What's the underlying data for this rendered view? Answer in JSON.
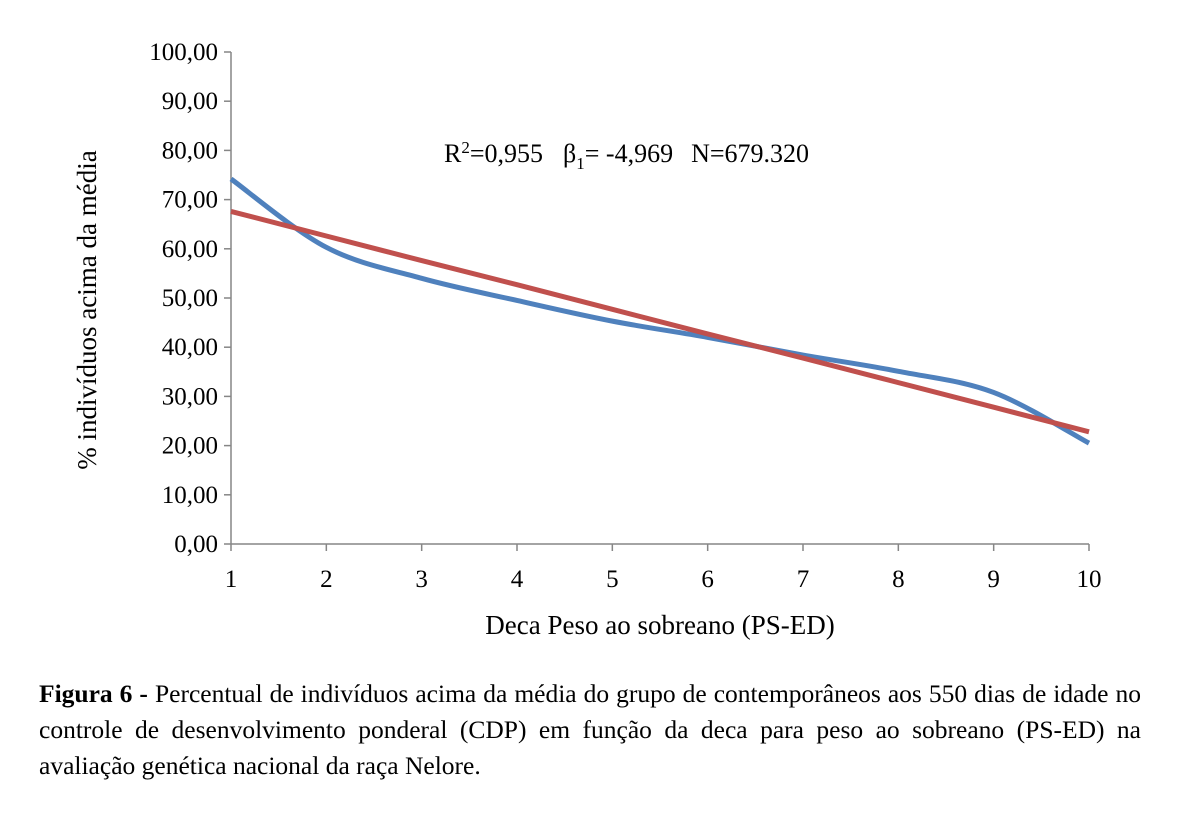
{
  "chart_data": {
    "type": "line",
    "xlabel": "Deca Peso ao sobreano (PS-ED)",
    "ylabel": "% indivíduos acima da média",
    "x": [
      1,
      2,
      3,
      4,
      5,
      6,
      7,
      8,
      9,
      10
    ],
    "x_tick_labels": [
      "1",
      "2",
      "3",
      "4",
      "5",
      "6",
      "7",
      "8",
      "9",
      "10"
    ],
    "y_tick_labels": [
      "0,00",
      "10,00",
      "20,00",
      "30,00",
      "40,00",
      "50,00",
      "60,00",
      "70,00",
      "80,00",
      "90,00",
      "100,00"
    ],
    "ylim": [
      0,
      100
    ],
    "xlim": [
      1,
      10
    ],
    "grid": false,
    "legend": "none",
    "series": [
      {
        "color": "#4f81bd",
        "smooth": true,
        "values": [
          74.2,
          60.3,
          54.0,
          49.5,
          45.3,
          42.0,
          38.4,
          35.1,
          30.8,
          20.5
        ]
      },
      {
        "color": "#c0504d",
        "smooth": false,
        "values": [
          67.6,
          62.6,
          57.6,
          52.7,
          47.7,
          42.7,
          37.8,
          32.8,
          27.8,
          22.8
        ]
      }
    ],
    "annotation": {
      "r2_label": "R",
      "r2_sup": "2",
      "r2_value": "=0,955",
      "beta_label": "β",
      "beta_sub": "1",
      "beta_value": "= -4,969",
      "n_text": "N=679.320"
    }
  },
  "caption": {
    "label": "Figura 6 -",
    "text": "Percentual de indivíduos acima da média do grupo de contemporâneos aos 550 dias de idade no controle de desenvolvimento ponderal (CDP) em função da deca para peso ao sobreano (PS-ED) na avaliação genética nacional da raça Nelore."
  }
}
